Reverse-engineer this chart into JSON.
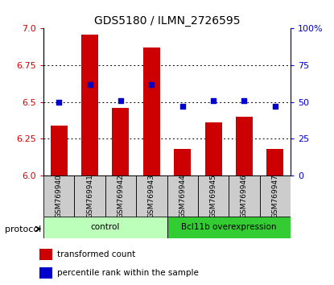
{
  "title": "GDS5180 / ILMN_2726595",
  "samples": [
    "GSM769940",
    "GSM769941",
    "GSM769942",
    "GSM769943",
    "GSM769944",
    "GSM769945",
    "GSM769946",
    "GSM769947"
  ],
  "bar_values": [
    6.34,
    6.96,
    6.46,
    6.87,
    6.18,
    6.36,
    6.4,
    6.18
  ],
  "dot_values": [
    50,
    62,
    51,
    62,
    47,
    51,
    51,
    47
  ],
  "ylim_left": [
    6.0,
    7.0
  ],
  "ylim_right": [
    0,
    100
  ],
  "bar_color": "#cc0000",
  "dot_color": "#0000cc",
  "groups": [
    {
      "label": "control",
      "start": 0,
      "end": 4,
      "color": "#bbffbb"
    },
    {
      "label": "Bcl11b overexpression",
      "start": 4,
      "end": 8,
      "color": "#33cc33"
    }
  ],
  "protocol_label": "protocol",
  "legend_bar_label": "transformed count",
  "legend_dot_label": "percentile rank within the sample",
  "left_yticks": [
    6.0,
    6.25,
    6.5,
    6.75,
    7.0
  ],
  "right_yticks": [
    0,
    25,
    50,
    75,
    100
  ],
  "grid_color": "#000000",
  "bg_color": "#ffffff",
  "sample_bg_color": "#cccccc"
}
